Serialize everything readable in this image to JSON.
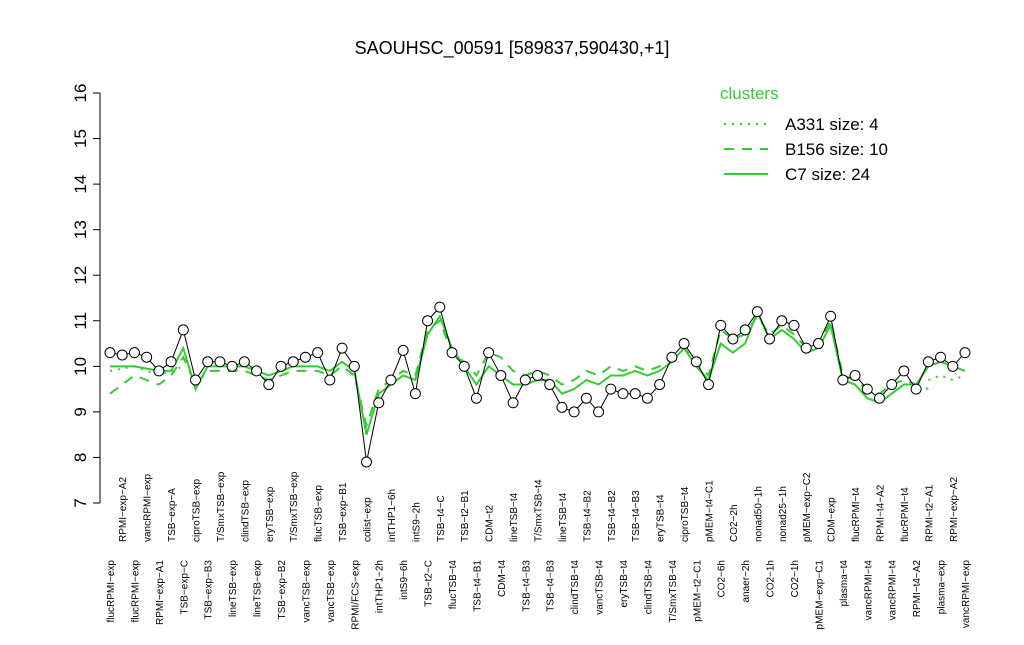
{
  "chart_data": {
    "type": "line",
    "title": "SAOUHSC_00591 [589837,590430,+1]",
    "categories": [
      "flucRPMI−exp",
      "RPMI−exp−A2",
      "flucRPMI−exp",
      "vancRPMI−exp",
      "RPMI−exp−A1",
      "TSB−exp−A",
      "TSB−exp−C",
      "ciproTSB−exp",
      "TSB−exp−B3",
      "T/SmxTSB−exp",
      "lineTSB−exp",
      "clindTSB−exp",
      "lineTSB−exp",
      "eryTSB−exp",
      "TSB−exp−B2",
      "T/SmxTSB−exp",
      "vancTSB−exp",
      "flucTSB−exp",
      "vancTSB−exp",
      "TSB−exp−B1",
      "RPMI/FCS−exp",
      "colist−exp",
      "intTHP1−2h",
      "intTHP1−6h",
      "intS9−6h",
      "intS9−2h",
      "TSB−t2−C",
      "TSB−t4−C",
      "flucTSB−t4",
      "TSB−t2−B1",
      "TSB−t4−B1",
      "CDM−t2",
      "CDM−t4",
      "lineTSB−t4",
      "TSB−t4−B3",
      "T/SmxTSB−t4",
      "TSB−t4−B3",
      "lineTSB−t4",
      "clindTSB−t4",
      "TSB−t4−B2",
      "vancTSB−t4",
      "TSB−t4−B2",
      "eryTSB−t4",
      "TSB−t4−B3",
      "clindTSB−t4",
      "eryTSB−t4",
      "T/SmxTSB−t4",
      "ciproTSB−t4",
      "pMEM−t2−C1",
      "pMEM−t4−C1",
      "CO2−6h",
      "CO2−2h",
      "anaer−2h",
      "nonad50−1h",
      "CO2−1h",
      "nonad25−1h",
      "CO2−1h",
      "pMEM−exp−C2",
      "pMEM−exp−C1",
      "CDM−exp",
      "plasma−t4",
      "flucRPMI−t4",
      "vancRPMI−t4",
      "RPMI−t4−A2",
      "vancRPMI−t4",
      "flucRPMI−t4",
      "RPMI−t4−A2",
      "RPMI−t2−A1",
      "plasma−exp",
      "RPMI−exp−A2",
      "vancRPMI−exp"
    ],
    "values": [
      10.3,
      10.25,
      10.3,
      10.2,
      9.9,
      10.1,
      10.8,
      9.7,
      10.1,
      10.1,
      10.0,
      10.1,
      9.9,
      9.6,
      10.0,
      10.1,
      10.2,
      10.3,
      9.7,
      10.4,
      10.0,
      7.9,
      9.2,
      9.7,
      10.35,
      9.4,
      11.0,
      11.3,
      10.3,
      10.0,
      9.3,
      10.3,
      9.8,
      9.2,
      9.7,
      9.8,
      9.6,
      9.1,
      9.0,
      9.3,
      9.0,
      9.5,
      9.4,
      9.4,
      9.3,
      9.6,
      10.2,
      10.5,
      10.1,
      9.6,
      10.9,
      10.6,
      10.8,
      11.2,
      10.6,
      11.0,
      10.9,
      10.4,
      10.5,
      11.1,
      9.7,
      9.8,
      9.5,
      9.3,
      9.6,
      9.9,
      9.5,
      10.1,
      10.2,
      10.0,
      10.3
    ],
    "series": [
      {
        "name": "A331 size: 4",
        "color": "#33cc33",
        "dash": "dotted",
        "values": [
          9.9,
          9.95,
          10.0,
          9.9,
          9.8,
          9.9,
          10.0,
          null,
          null,
          null,
          null,
          null,
          null,
          null,
          null,
          null,
          null,
          null,
          null,
          null,
          null,
          null,
          null,
          null,
          null,
          null,
          null,
          null,
          null,
          null,
          null,
          null,
          null,
          null,
          null,
          null,
          null,
          null,
          null,
          null,
          null,
          null,
          null,
          null,
          null,
          null,
          null,
          null,
          null,
          null,
          null,
          null,
          null,
          null,
          null,
          null,
          null,
          null,
          null,
          null,
          null,
          null,
          null,
          null,
          null,
          null,
          null,
          9.7,
          9.8,
          9.7,
          9.8
        ]
      },
      {
        "name": "B156 size: 10",
        "color": "#33cc33",
        "dash": "dashed",
        "values": [
          9.4,
          9.6,
          9.8,
          9.7,
          9.6,
          9.8,
          10.2,
          9.6,
          9.9,
          9.9,
          9.9,
          9.9,
          9.8,
          9.7,
          9.8,
          9.9,
          9.9,
          9.9,
          9.8,
          10.0,
          9.8,
          8.7,
          9.5,
          9.7,
          9.9,
          9.8,
          10.8,
          11.0,
          10.3,
          10.1,
          9.8,
          10.3,
          10.2,
          9.9,
          9.8,
          9.9,
          9.8,
          9.6,
          9.7,
          9.9,
          9.8,
          10.0,
          9.9,
          10.0,
          9.9,
          10.0,
          10.2,
          10.4,
          10.1,
          9.8,
          10.8,
          10.6,
          10.7,
          11.1,
          10.7,
          10.9,
          10.7,
          10.4,
          10.5,
          11.0,
          9.8,
          9.7,
          9.5,
          9.4,
          9.6,
          9.7,
          9.6,
          9.5,
          null,
          null,
          null
        ]
      },
      {
        "name": "C7 size: 24",
        "color": "#33cc33",
        "dash": "solid",
        "values": [
          10.0,
          10.0,
          10.0,
          9.95,
          9.9,
          9.9,
          10.4,
          9.5,
          10.0,
          10.0,
          10.0,
          10.0,
          9.9,
          9.8,
          9.9,
          10.0,
          10.0,
          10.0,
          9.9,
          10.1,
          9.9,
          8.5,
          9.4,
          9.6,
          9.8,
          9.7,
          10.7,
          11.1,
          10.4,
          10.0,
          9.6,
          10.0,
          9.8,
          9.6,
          9.6,
          9.7,
          9.7,
          9.4,
          9.5,
          9.7,
          9.6,
          9.8,
          9.8,
          9.9,
          9.8,
          9.9,
          10.1,
          10.4,
          10.0,
          9.7,
          10.5,
          10.3,
          10.5,
          11.2,
          10.6,
          10.8,
          10.6,
          10.3,
          10.4,
          10.9,
          9.7,
          9.6,
          9.3,
          9.2,
          9.4,
          9.6,
          9.6,
          10.0,
          10.1,
          10.0,
          9.9
        ]
      }
    ],
    "legend_title": "clusters",
    "legend": "topright",
    "ylim": [
      7,
      16
    ],
    "yticks": [
      7,
      8,
      9,
      10,
      11,
      12,
      13,
      14,
      15,
      16
    ]
  }
}
